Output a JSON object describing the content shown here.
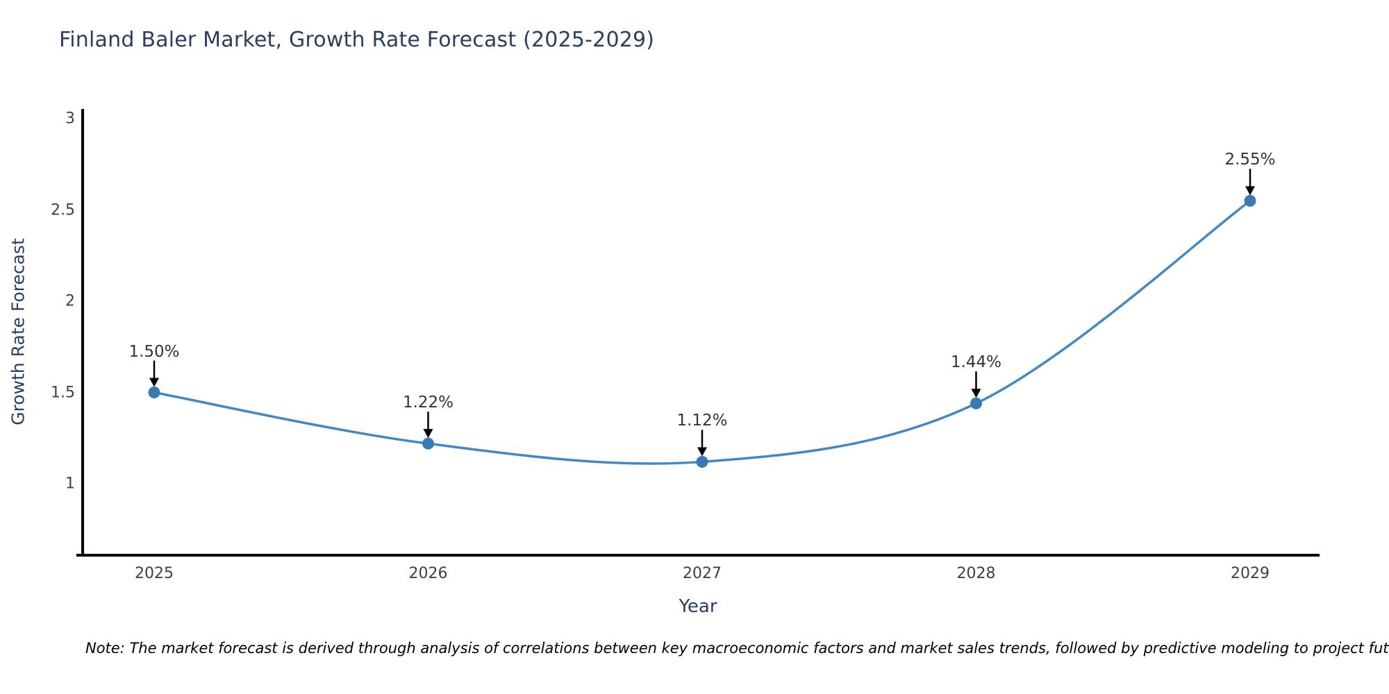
{
  "title": "Finland Baler Market, Growth Rate Forecast (2025-2029)",
  "chart_data": {
    "type": "line",
    "x": [
      2025,
      2026,
      2027,
      2028,
      2029
    ],
    "series": [
      {
        "name": "Growth Rate Forecast",
        "values": [
          1.5,
          1.22,
          1.12,
          1.44,
          2.55
        ]
      }
    ],
    "point_labels": [
      "1.50%",
      "1.22%",
      "1.12%",
      "1.44%",
      "2.55%"
    ],
    "title": "Finland Baler Market, Growth Rate Forecast (2025-2029)",
    "xlabel": "Year",
    "ylabel": "Growth Rate Forecast",
    "yticks": [
      "1",
      "1.5",
      "2",
      "2.5",
      "3"
    ],
    "ytick_values": [
      1,
      1.5,
      2,
      2.5,
      3
    ],
    "ylim": [
      0.61,
      3.05
    ],
    "grid": false,
    "legend": "none",
    "line_style": "smooth spline",
    "annotation_style": "black arrow pointing down onto each data point"
  },
  "note": "Note: The market forecast is derived through analysis of correlations between key macroeconomic factors and market sales trends, followed by predictive modeling to project future sales",
  "colors": {
    "line": "#4288c5",
    "marker": "#3a79b5",
    "axis": "#000000",
    "arrow": "#000000",
    "title_text": "#2a3f5f",
    "axis_title_text": "#2a3f5f",
    "tick_text": "#3c4048",
    "annotation_text": "#333333",
    "note_text": "#000000",
    "background": "#ffffff"
  }
}
